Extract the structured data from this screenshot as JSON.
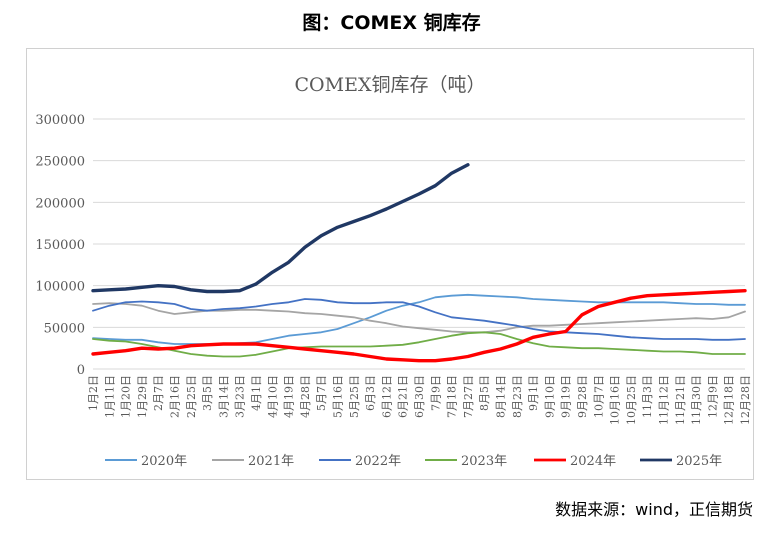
{
  "figure_title": "图：COMEX 铜库存",
  "source": "数据来源：wind，正信期货",
  "chart_data": {
    "type": "line",
    "title": "COMEX铜库存（吨）",
    "ylim": [
      0,
      300000
    ],
    "yticks": [
      "0",
      "50000",
      "100000",
      "150000",
      "200000",
      "250000",
      "300000"
    ],
    "x_tick_labels": [
      "1月2日",
      "1月11日",
      "1月20日",
      "1月29日",
      "2月7日",
      "2月16日",
      "2月25日",
      "3月5日",
      "3月14日",
      "3月23日",
      "4月1日",
      "4月10日",
      "4月19日",
      "4月28日",
      "5月7日",
      "5月16日",
      "5月25日",
      "6月3日",
      "6月12日",
      "6月21日",
      "6月30日",
      "7月9日",
      "7月18日",
      "7月27日",
      "8月5日",
      "8月14日",
      "8月23日",
      "9月1日",
      "9月10日",
      "9月19日",
      "9月28日",
      "10月7日",
      "10月16日",
      "10月25日",
      "11月3日",
      "11月12日",
      "11月21日",
      "11月30日",
      "12月9日",
      "12月18日",
      "12月28日"
    ],
    "grid": true,
    "legend_position": "bottom",
    "series": [
      {
        "name": "2020年",
        "color": "#5b9bd5",
        "width": 1.8,
        "values": [
          37000,
          36000,
          35000,
          35000,
          32000,
          30000,
          30000,
          30000,
          30000,
          31000,
          32000,
          36000,
          40000,
          42000,
          44000,
          48000,
          55000,
          62000,
          70000,
          76000,
          80000,
          86000,
          88000,
          89000,
          88000,
          87000,
          86000,
          84000,
          83000,
          82000,
          81000,
          80000,
          80000,
          80000,
          80000,
          80000,
          79000,
          78000,
          78000,
          77000,
          77000
        ]
      },
      {
        "name": "2021年",
        "color": "#a5a5a5",
        "width": 1.8,
        "values": [
          78000,
          79000,
          78000,
          76000,
          70000,
          66000,
          68000,
          70000,
          70000,
          71000,
          71000,
          70000,
          69000,
          67000,
          66000,
          64000,
          62000,
          58000,
          55000,
          51000,
          49000,
          47000,
          45000,
          44000,
          44000,
          46000,
          50000,
          52000,
          52000,
          53000,
          54000,
          55000,
          56000,
          57000,
          58000,
          59000,
          60000,
          61000,
          60000,
          62000,
          69000
        ]
      },
      {
        "name": "2022年",
        "color": "#4472c4",
        "width": 1.8,
        "values": [
          70000,
          76000,
          80000,
          81000,
          80000,
          78000,
          72000,
          70000,
          72000,
          73000,
          75000,
          78000,
          80000,
          84000,
          83000,
          80000,
          79000,
          79000,
          80000,
          80000,
          75000,
          68000,
          62000,
          60000,
          58000,
          55000,
          52000,
          48000,
          45000,
          44000,
          43000,
          42000,
          40000,
          38000,
          37000,
          36000,
          36000,
          36000,
          35000,
          35000,
          36000
        ]
      },
      {
        "name": "2023年",
        "color": "#70ad47",
        "width": 1.8,
        "values": [
          36000,
          34000,
          33000,
          30000,
          26000,
          22000,
          18000,
          16000,
          15000,
          15000,
          17000,
          21000,
          25000,
          26000,
          27000,
          27000,
          27000,
          27000,
          28000,
          29000,
          32000,
          36000,
          40000,
          43000,
          44000,
          42000,
          36000,
          31000,
          27000,
          26000,
          25000,
          25000,
          24000,
          23000,
          22000,
          21000,
          21000,
          20000,
          18000,
          18000,
          18000
        ]
      },
      {
        "name": "2024年",
        "color": "#ff0000",
        "width": 3.4,
        "values": [
          18000,
          20000,
          22000,
          25000,
          24000,
          25000,
          28000,
          29000,
          30000,
          30000,
          30000,
          28000,
          26000,
          24000,
          22000,
          20000,
          18000,
          15000,
          12000,
          11000,
          10000,
          10000,
          12000,
          15000,
          20000,
          24000,
          30000,
          38000,
          42000,
          45000,
          65000,
          75000,
          80000,
          85000,
          88000,
          89000,
          90000,
          91000,
          92000,
          93000,
          94000
        ]
      },
      {
        "name": "2025年",
        "color": "#203864",
        "width": 3.4,
        "values": [
          94000,
          95000,
          96000,
          98000,
          100000,
          99000,
          95000,
          93000,
          93000,
          94000,
          102000,
          116000,
          128000,
          146000,
          160000,
          170000,
          177000,
          184000,
          192000,
          201000,
          210000,
          220000,
          235000,
          245000
        ]
      }
    ]
  }
}
